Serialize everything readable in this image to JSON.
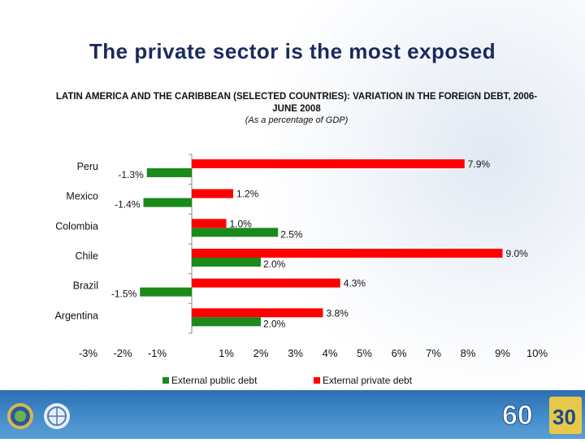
{
  "slide": {
    "title": "The private sector is the most exposed",
    "chart_heading": "LATIN AMERICA AND THE CARIBBEAN (SELECTED COUNTRIES): VARIATION IN THE FOREIGN DEBT, 2006-JUNE 2008",
    "chart_note": "(As a percentage of GDP)"
  },
  "colors": {
    "private": "#ff0000",
    "public": "#1a8a1a",
    "title": "#1a2a5e",
    "footer": "#3f88c8"
  },
  "chart_data": {
    "type": "bar",
    "orientation": "horizontal",
    "categories": [
      "Peru",
      "Mexico",
      "Colombia",
      "Chile",
      "Brazil",
      "Argentina"
    ],
    "series": [
      {
        "name": "External private debt",
        "values": [
          7.9,
          1.2,
          1.0,
          9.0,
          4.3,
          3.8
        ],
        "labels": [
          "7.9%",
          "1.2%",
          "1.0%",
          "9.0%",
          "4.3%",
          "3.8%"
        ]
      },
      {
        "name": "External public debt",
        "values": [
          -1.3,
          -1.4,
          2.5,
          2.0,
          -1.5,
          2.0
        ],
        "labels": [
          "-1.3%",
          "-1.4%",
          "2.5%",
          "2.0%",
          "-1.5%",
          "2.0%"
        ]
      }
    ],
    "xlim": [
      -3,
      10
    ],
    "ticks": [
      -3,
      -2,
      -1,
      1,
      2,
      3,
      4,
      5,
      6,
      7,
      8,
      9,
      10
    ],
    "tick_labels": [
      "-3%",
      "-2%",
      "-1%",
      "1%",
      "2%",
      "3%",
      "4%",
      "5%",
      "6%",
      "7%",
      "8%",
      "9%",
      "10%"
    ],
    "legend_position": "bottom",
    "grid": false
  },
  "legend": {
    "public_label": "External public debt",
    "private_label": "External private debt"
  }
}
